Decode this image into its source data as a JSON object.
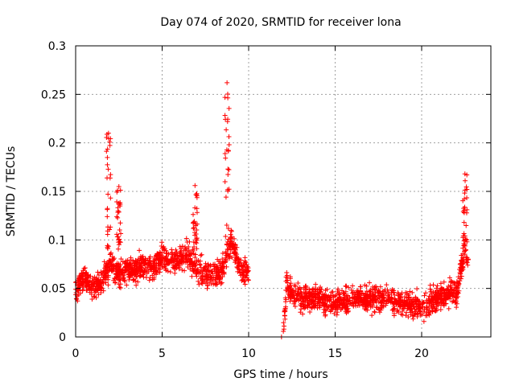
{
  "chart_data": {
    "type": "scatter",
    "title": "Day 074 of 2020, SRMTID for receiver lona",
    "xlabel": "GPS time / hours",
    "ylabel": "SRMTID / TECUs",
    "xlim": [
      0,
      24
    ],
    "ylim": [
      0,
      0.3
    ],
    "grid": true,
    "marker": "+",
    "series_color": "#ff0000",
    "x_ticks": [
      {
        "value": 0,
        "label": "0"
      },
      {
        "value": 5,
        "label": "5"
      },
      {
        "value": 10,
        "label": "10"
      },
      {
        "value": 15,
        "label": "15"
      },
      {
        "value": 20,
        "label": "20"
      }
    ],
    "y_ticks": [
      {
        "value": 0,
        "label": "0"
      },
      {
        "value": 0.05,
        "label": "0.05"
      },
      {
        "value": 0.1,
        "label": "0.1"
      },
      {
        "value": 0.15,
        "label": "0.15"
      },
      {
        "value": 0.2,
        "label": "0.2"
      },
      {
        "value": 0.25,
        "label": "0.25"
      },
      {
        "value": 0.3,
        "label": "0.3"
      }
    ],
    "series": [
      {
        "name": "SRMTID",
        "segments": [
          {
            "x_range": [
              0,
              10
            ],
            "approx_profile": [
              {
                "x": 0.0,
                "y": 0.05
              },
              {
                "x": 0.5,
                "y": 0.06
              },
              {
                "x": 1.0,
                "y": 0.05
              },
              {
                "x": 1.5,
                "y": 0.055
              },
              {
                "x": 2.0,
                "y": 0.075
              },
              {
                "x": 2.5,
                "y": 0.065
              },
              {
                "x": 3.0,
                "y": 0.07
              },
              {
                "x": 3.5,
                "y": 0.07
              },
              {
                "x": 4.0,
                "y": 0.075
              },
              {
                "x": 4.5,
                "y": 0.07
              },
              {
                "x": 5.0,
                "y": 0.08
              },
              {
                "x": 5.5,
                "y": 0.08
              },
              {
                "x": 6.0,
                "y": 0.08
              },
              {
                "x": 6.5,
                "y": 0.085
              },
              {
                "x": 7.0,
                "y": 0.07
              },
              {
                "x": 7.5,
                "y": 0.065
              },
              {
                "x": 8.0,
                "y": 0.065
              },
              {
                "x": 8.5,
                "y": 0.07
              },
              {
                "x": 9.0,
                "y": 0.1
              },
              {
                "x": 9.5,
                "y": 0.07
              },
              {
                "x": 10.0,
                "y": 0.065
              }
            ],
            "peaks": [
              {
                "x": 1.9,
                "y": 0.21
              },
              {
                "x": 2.5,
                "y": 0.155
              },
              {
                "x": 6.9,
                "y": 0.156
              },
              {
                "x": 8.75,
                "y": 0.262
              },
              {
                "x": 22.5,
                "y": 0.168
              }
            ]
          },
          {
            "x_range": [
              12,
              22.7
            ],
            "approx_profile": [
              {
                "x": 12.0,
                "y": 0.0
              },
              {
                "x": 12.2,
                "y": 0.055
              },
              {
                "x": 12.5,
                "y": 0.045
              },
              {
                "x": 13.0,
                "y": 0.04
              },
              {
                "x": 14.0,
                "y": 0.04
              },
              {
                "x": 15.0,
                "y": 0.035
              },
              {
                "x": 16.0,
                "y": 0.04
              },
              {
                "x": 17.0,
                "y": 0.04
              },
              {
                "x": 18.0,
                "y": 0.04
              },
              {
                "x": 19.0,
                "y": 0.035
              },
              {
                "x": 20.0,
                "y": 0.03
              },
              {
                "x": 21.0,
                "y": 0.04
              },
              {
                "x": 21.5,
                "y": 0.045
              },
              {
                "x": 22.0,
                "y": 0.045
              },
              {
                "x": 22.5,
                "y": 0.09
              },
              {
                "x": 22.7,
                "y": 0.08
              }
            ]
          }
        ]
      }
    ]
  }
}
